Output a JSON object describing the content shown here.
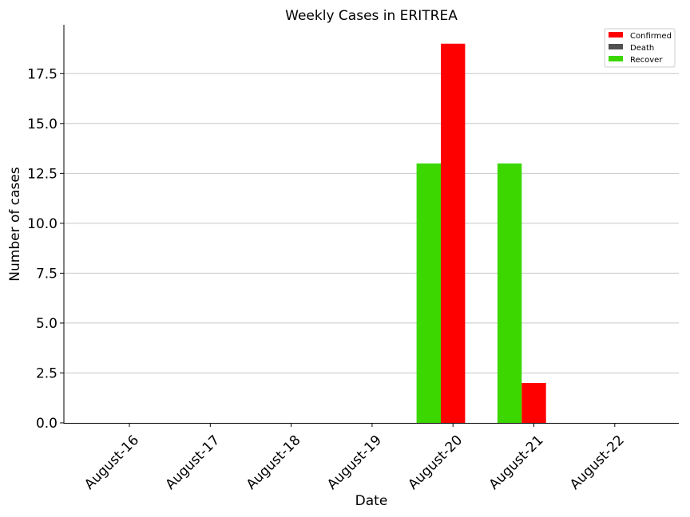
{
  "chart_data": {
    "type": "bar",
    "title": "Weekly Cases in ERITREA",
    "xlabel": "Date",
    "ylabel": "Number of cases",
    "categories": [
      "August-16",
      "August-17",
      "August-18",
      "August-19",
      "August-20",
      "August-21",
      "August-22"
    ],
    "series": [
      {
        "name": "Confirmed",
        "color": "#ff0000",
        "values": [
          0,
          0,
          0,
          0,
          19,
          2,
          0
        ]
      },
      {
        "name": "Death",
        "color": "#505050",
        "values": [
          0,
          0,
          0,
          0,
          0,
          0,
          0
        ]
      },
      {
        "name": "Recover",
        "color": "#3cd700",
        "values": [
          0,
          0,
          0,
          0,
          13,
          13,
          0
        ]
      }
    ],
    "ylim": [
      0,
      19.95
    ],
    "yticks": [
      "0.0",
      "2.5",
      "5.0",
      "7.5",
      "10.0",
      "12.5",
      "15.0",
      "17.5"
    ],
    "ytick_values": [
      0,
      2.5,
      5,
      7.5,
      10,
      12.5,
      15,
      17.5
    ],
    "grid": "horizontal",
    "legend_position": "top-right"
  }
}
